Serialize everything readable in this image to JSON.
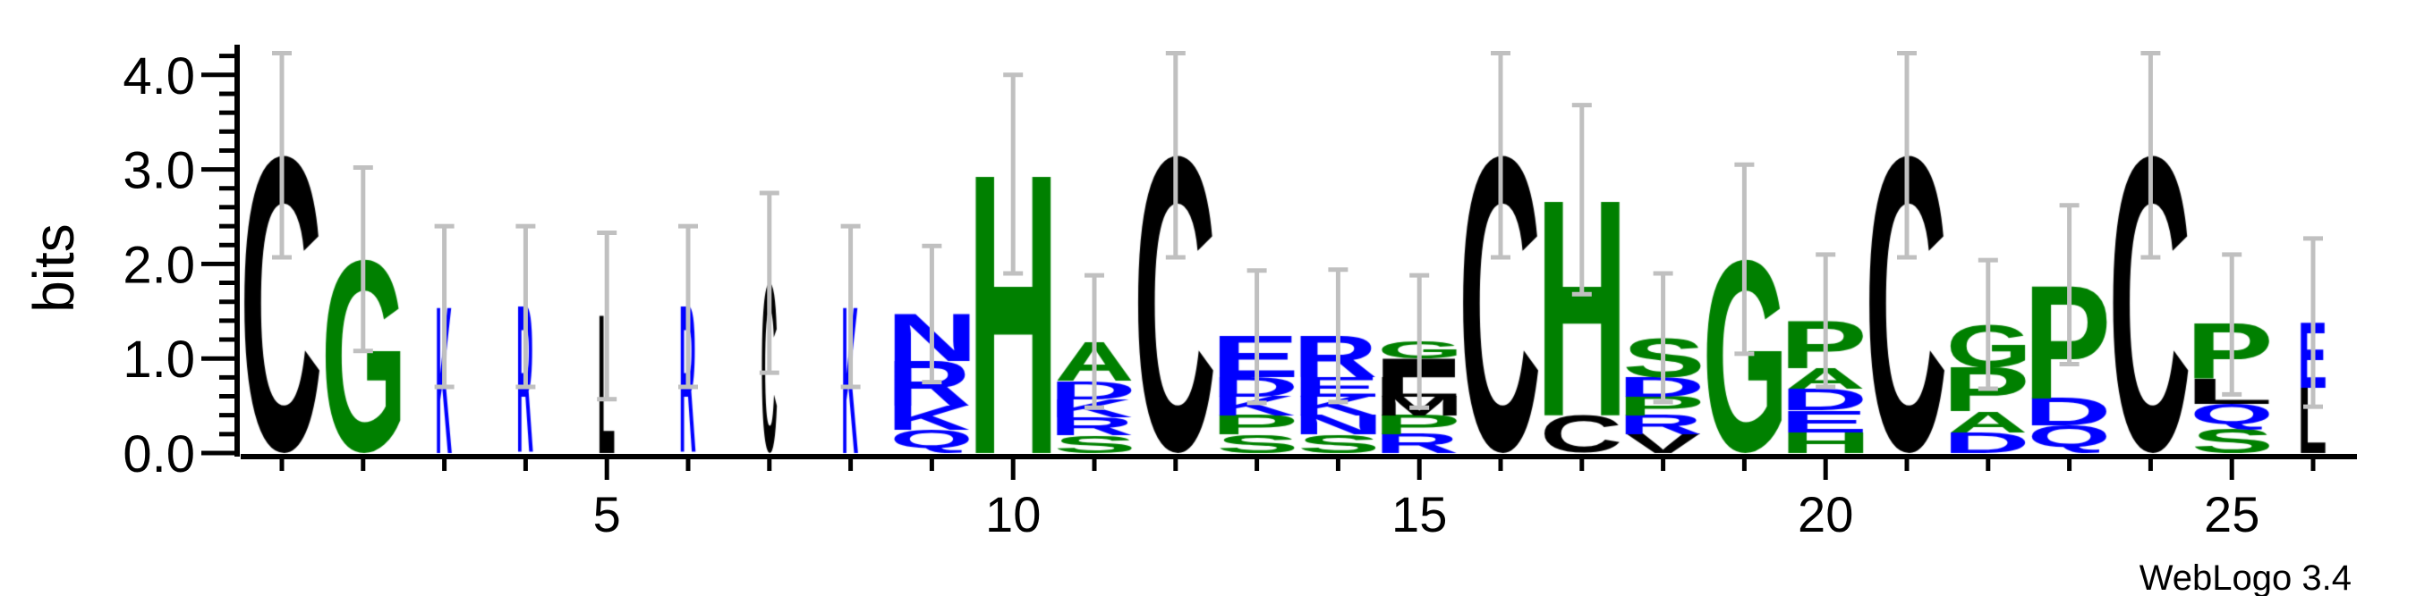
{
  "chart_data": {
    "type": "sequence-logo",
    "ylabel": "bits",
    "ylim": [
      0,
      4.3
    ],
    "yticks": [
      "0.0",
      "1.0",
      "2.0",
      "3.0",
      "4.0"
    ],
    "xticks": [
      "5",
      "10",
      "15",
      "20",
      "25"
    ],
    "footer": "WebLogo 3.4",
    "colors": {
      "green": "#008000",
      "blue": "#0000FF",
      "black": "#000000",
      "error_bar": "#C0C0C0"
    },
    "letter_colors": {
      "C": "#000000",
      "L": "#000000",
      "M": "#000000",
      "I": "#000000",
      "V": "#000000",
      "G": "#008000",
      "H": "#008000",
      "A": "#008000",
      "P": "#008000",
      "S": "#008000",
      "K": "#0000FF",
      "R": "#0000FF",
      "N": "#0000FF",
      "Q": "#0000FF",
      "D": "#0000FF",
      "E": "#0000FF"
    },
    "positions": [
      {
        "pos": 1,
        "weight": 1,
        "err": 1.08,
        "stack": [
          [
            "C",
            3.15
          ]
        ]
      },
      {
        "pos": 2,
        "weight": 1,
        "err": 0.97,
        "stack": [
          [
            "G",
            2.05
          ]
        ]
      },
      {
        "pos": 3,
        "weight": 0.2,
        "err": 0.85,
        "stack": [
          [
            "K",
            1.55
          ]
        ]
      },
      {
        "pos": 4,
        "weight": 0.2,
        "err": 0.85,
        "stack": [
          [
            "R",
            1.55
          ]
        ]
      },
      {
        "pos": 5,
        "weight": 0.2,
        "err": 0.88,
        "stack": [
          [
            "L",
            1.45
          ]
        ]
      },
      {
        "pos": 6,
        "weight": 0.2,
        "err": 0.85,
        "stack": [
          [
            "R",
            1.55
          ]
        ]
      },
      {
        "pos": 7,
        "weight": 0.2,
        "err": 0.95,
        "stack": [
          [
            "C",
            1.8
          ]
        ]
      },
      {
        "pos": 8,
        "weight": 0.2,
        "err": 0.85,
        "stack": [
          [
            "K",
            1.55
          ]
        ]
      },
      {
        "pos": 9,
        "weight": 1,
        "err": 0.72,
        "stack": [
          [
            "N",
            0.5
          ],
          [
            "R",
            0.47
          ],
          [
            "K",
            0.25
          ],
          [
            "Q",
            0.25
          ]
        ]
      },
      {
        "pos": 10,
        "weight": 1,
        "err": 1.05,
        "stack": [
          [
            "H",
            2.95
          ]
        ]
      },
      {
        "pos": 11,
        "weight": 1,
        "err": 0.7,
        "stack": [
          [
            "A",
            0.42
          ],
          [
            "D",
            0.19
          ],
          [
            "K",
            0.19
          ],
          [
            "R",
            0.19
          ],
          [
            "S",
            0.19
          ]
        ]
      },
      {
        "pos": 12,
        "weight": 1,
        "err": 1.08,
        "stack": [
          [
            "C",
            3.15
          ]
        ]
      },
      {
        "pos": 13,
        "weight": 1,
        "err": 0.7,
        "stack": [
          [
            "E",
            0.43
          ],
          [
            "D",
            0.2
          ],
          [
            "K",
            0.2
          ],
          [
            "P",
            0.2
          ],
          [
            "S",
            0.2
          ]
        ]
      },
      {
        "pos": 14,
        "weight": 1,
        "err": 0.7,
        "stack": [
          [
            "R",
            0.44
          ],
          [
            "E",
            0.2
          ],
          [
            "K",
            0.2
          ],
          [
            "N",
            0.2
          ],
          [
            "S",
            0.2
          ]
        ]
      },
      {
        "pos": 15,
        "weight": 1,
        "err": 0.7,
        "stack": [
          [
            "G",
            0.18
          ],
          [
            "I",
            0.2
          ],
          [
            "L",
            0.2
          ],
          [
            "M",
            0.2
          ],
          [
            "P",
            0.2
          ],
          [
            "R",
            0.2
          ]
        ]
      },
      {
        "pos": 16,
        "weight": 1,
        "err": 1.08,
        "stack": [
          [
            "C",
            3.15
          ]
        ]
      },
      {
        "pos": 17,
        "weight": 1,
        "err": 1.0,
        "stack": [
          [
            "H",
            2.28
          ],
          [
            "C",
            0.4
          ]
        ]
      },
      {
        "pos": 18,
        "weight": 1,
        "err": 0.68,
        "stack": [
          [
            "S",
            0.42
          ],
          [
            "D",
            0.2
          ],
          [
            "P",
            0.2
          ],
          [
            "R",
            0.2
          ],
          [
            "V",
            0.2
          ]
        ]
      },
      {
        "pos": 19,
        "weight": 1,
        "err": 1.0,
        "stack": [
          [
            "G",
            2.05
          ]
        ]
      },
      {
        "pos": 20,
        "weight": 1,
        "err": 0.7,
        "stack": [
          [
            "P",
            0.5
          ],
          [
            "A",
            0.22
          ],
          [
            "D",
            0.23
          ],
          [
            "E",
            0.23
          ],
          [
            "H",
            0.22
          ]
        ]
      },
      {
        "pos": 21,
        "weight": 1,
        "err": 1.08,
        "stack": [
          [
            "C",
            3.15
          ]
        ]
      },
      {
        "pos": 22,
        "weight": 1,
        "err": 0.68,
        "stack": [
          [
            "G",
            0.46
          ],
          [
            "P",
            0.46
          ],
          [
            "A",
            0.22
          ],
          [
            "D",
            0.22
          ]
        ]
      },
      {
        "pos": 23,
        "weight": 1,
        "err": 0.84,
        "stack": [
          [
            "P",
            1.2
          ],
          [
            "D",
            0.29
          ],
          [
            "Q",
            0.29
          ]
        ]
      },
      {
        "pos": 24,
        "weight": 1,
        "err": 1.08,
        "stack": [
          [
            "C",
            3.15
          ]
        ]
      },
      {
        "pos": 25,
        "weight": 1,
        "err": 0.74,
        "stack": [
          [
            "P",
            0.58
          ],
          [
            "L",
            0.26
          ],
          [
            "Q",
            0.26
          ],
          [
            "S",
            0.26
          ]
        ]
      },
      {
        "pos": 26,
        "weight": 0.33,
        "err": 0.89,
        "stack": [
          [
            "E",
            0.69
          ],
          [
            "L",
            0.69
          ]
        ]
      }
    ]
  }
}
